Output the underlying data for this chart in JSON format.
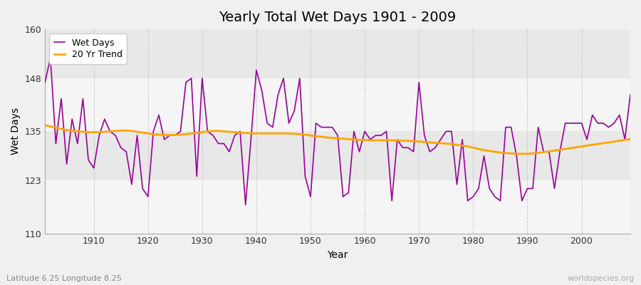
{
  "title": "Yearly Total Wet Days 1901 - 2009",
  "xlabel": "Year",
  "ylabel": "Wet Days",
  "subtitle": "Latitude 6.25 Longitude 8.25",
  "watermark": "worldspecies.org",
  "years": [
    1901,
    1902,
    1903,
    1904,
    1905,
    1906,
    1907,
    1908,
    1909,
    1910,
    1911,
    1912,
    1913,
    1914,
    1915,
    1916,
    1917,
    1918,
    1919,
    1920,
    1921,
    1922,
    1923,
    1924,
    1925,
    1926,
    1927,
    1928,
    1929,
    1930,
    1931,
    1932,
    1933,
    1934,
    1935,
    1936,
    1937,
    1938,
    1939,
    1940,
    1941,
    1942,
    1943,
    1944,
    1945,
    1946,
    1947,
    1948,
    1949,
    1950,
    1951,
    1952,
    1953,
    1954,
    1955,
    1956,
    1957,
    1958,
    1959,
    1960,
    1961,
    1962,
    1963,
    1964,
    1965,
    1966,
    1967,
    1968,
    1969,
    1970,
    1971,
    1972,
    1973,
    1974,
    1975,
    1976,
    1977,
    1978,
    1979,
    1980,
    1981,
    1982,
    1983,
    1984,
    1985,
    1986,
    1987,
    1988,
    1989,
    1990,
    1991,
    1992,
    1993,
    1994,
    1995,
    1996,
    1997,
    1998,
    1999,
    2000,
    2001,
    2002,
    2003,
    2004,
    2005,
    2006,
    2007,
    2008,
    2009
  ],
  "wet_days": [
    147,
    153,
    132,
    143,
    127,
    138,
    132,
    143,
    128,
    126,
    134,
    138,
    135,
    134,
    131,
    130,
    122,
    134,
    121,
    119,
    135,
    139,
    133,
    134,
    134,
    135,
    147,
    148,
    124,
    148,
    135,
    134,
    132,
    132,
    130,
    134,
    135,
    117,
    133,
    150,
    145,
    137,
    136,
    144,
    148,
    137,
    140,
    148,
    124,
    119,
    137,
    136,
    136,
    136,
    134,
    119,
    120,
    135,
    130,
    135,
    133,
    134,
    134,
    135,
    118,
    133,
    131,
    131,
    130,
    147,
    134,
    130,
    131,
    133,
    135,
    135,
    122,
    133,
    118,
    119,
    121,
    129,
    121,
    119,
    118,
    136,
    136,
    129,
    118,
    121,
    121,
    136,
    130,
    130,
    121,
    130,
    137,
    137,
    137,
    137,
    133,
    139,
    137,
    137,
    136,
    137,
    139,
    133,
    144
  ],
  "trend_values": [
    136.5,
    136.2,
    135.9,
    135.6,
    135.3,
    135.1,
    135.0,
    134.9,
    134.8,
    134.8,
    134.8,
    134.9,
    135.0,
    135.1,
    135.2,
    135.2,
    135.1,
    134.9,
    134.7,
    134.5,
    134.3,
    134.2,
    134.1,
    134.1,
    134.1,
    134.2,
    134.3,
    134.5,
    134.6,
    134.8,
    135.0,
    135.1,
    135.1,
    135.0,
    134.9,
    134.8,
    134.7,
    134.6,
    134.5,
    134.5,
    134.5,
    134.5,
    134.5,
    134.5,
    134.5,
    134.5,
    134.4,
    134.3,
    134.2,
    134.0,
    133.8,
    133.7,
    133.5,
    133.4,
    133.3,
    133.2,
    133.1,
    133.0,
    132.9,
    132.9,
    132.8,
    132.8,
    132.8,
    132.8,
    132.8,
    132.8,
    132.7,
    132.7,
    132.6,
    132.5,
    132.4,
    132.3,
    132.2,
    132.1,
    132.0,
    131.9,
    131.7,
    131.5,
    131.3,
    131.0,
    130.7,
    130.4,
    130.2,
    130.0,
    129.8,
    129.7,
    129.6,
    129.5,
    129.5,
    129.5,
    129.6,
    129.7,
    129.9,
    130.1,
    130.3,
    130.5,
    130.7,
    130.9,
    131.1,
    131.3,
    131.5,
    131.7,
    131.9,
    132.1,
    132.3,
    132.5,
    132.7,
    132.9,
    133.1
  ],
  "ylim": [
    110,
    160
  ],
  "yticks": [
    110,
    123,
    135,
    148,
    160
  ],
  "xticks": [
    1910,
    1920,
    1930,
    1940,
    1950,
    1960,
    1970,
    1980,
    1990,
    2000
  ],
  "xlim": [
    1901,
    2009
  ],
  "wet_days_color": "#990099",
  "trend_color": "#FFA500",
  "bg_color": "#f0f0f0",
  "plot_bg_color": "#e8e8e8",
  "band_color_light": "#f5f5f5",
  "grid_color": "#cccccc",
  "title_fontsize": 14,
  "axis_label_fontsize": 10,
  "tick_fontsize": 9,
  "legend_fontsize": 9
}
